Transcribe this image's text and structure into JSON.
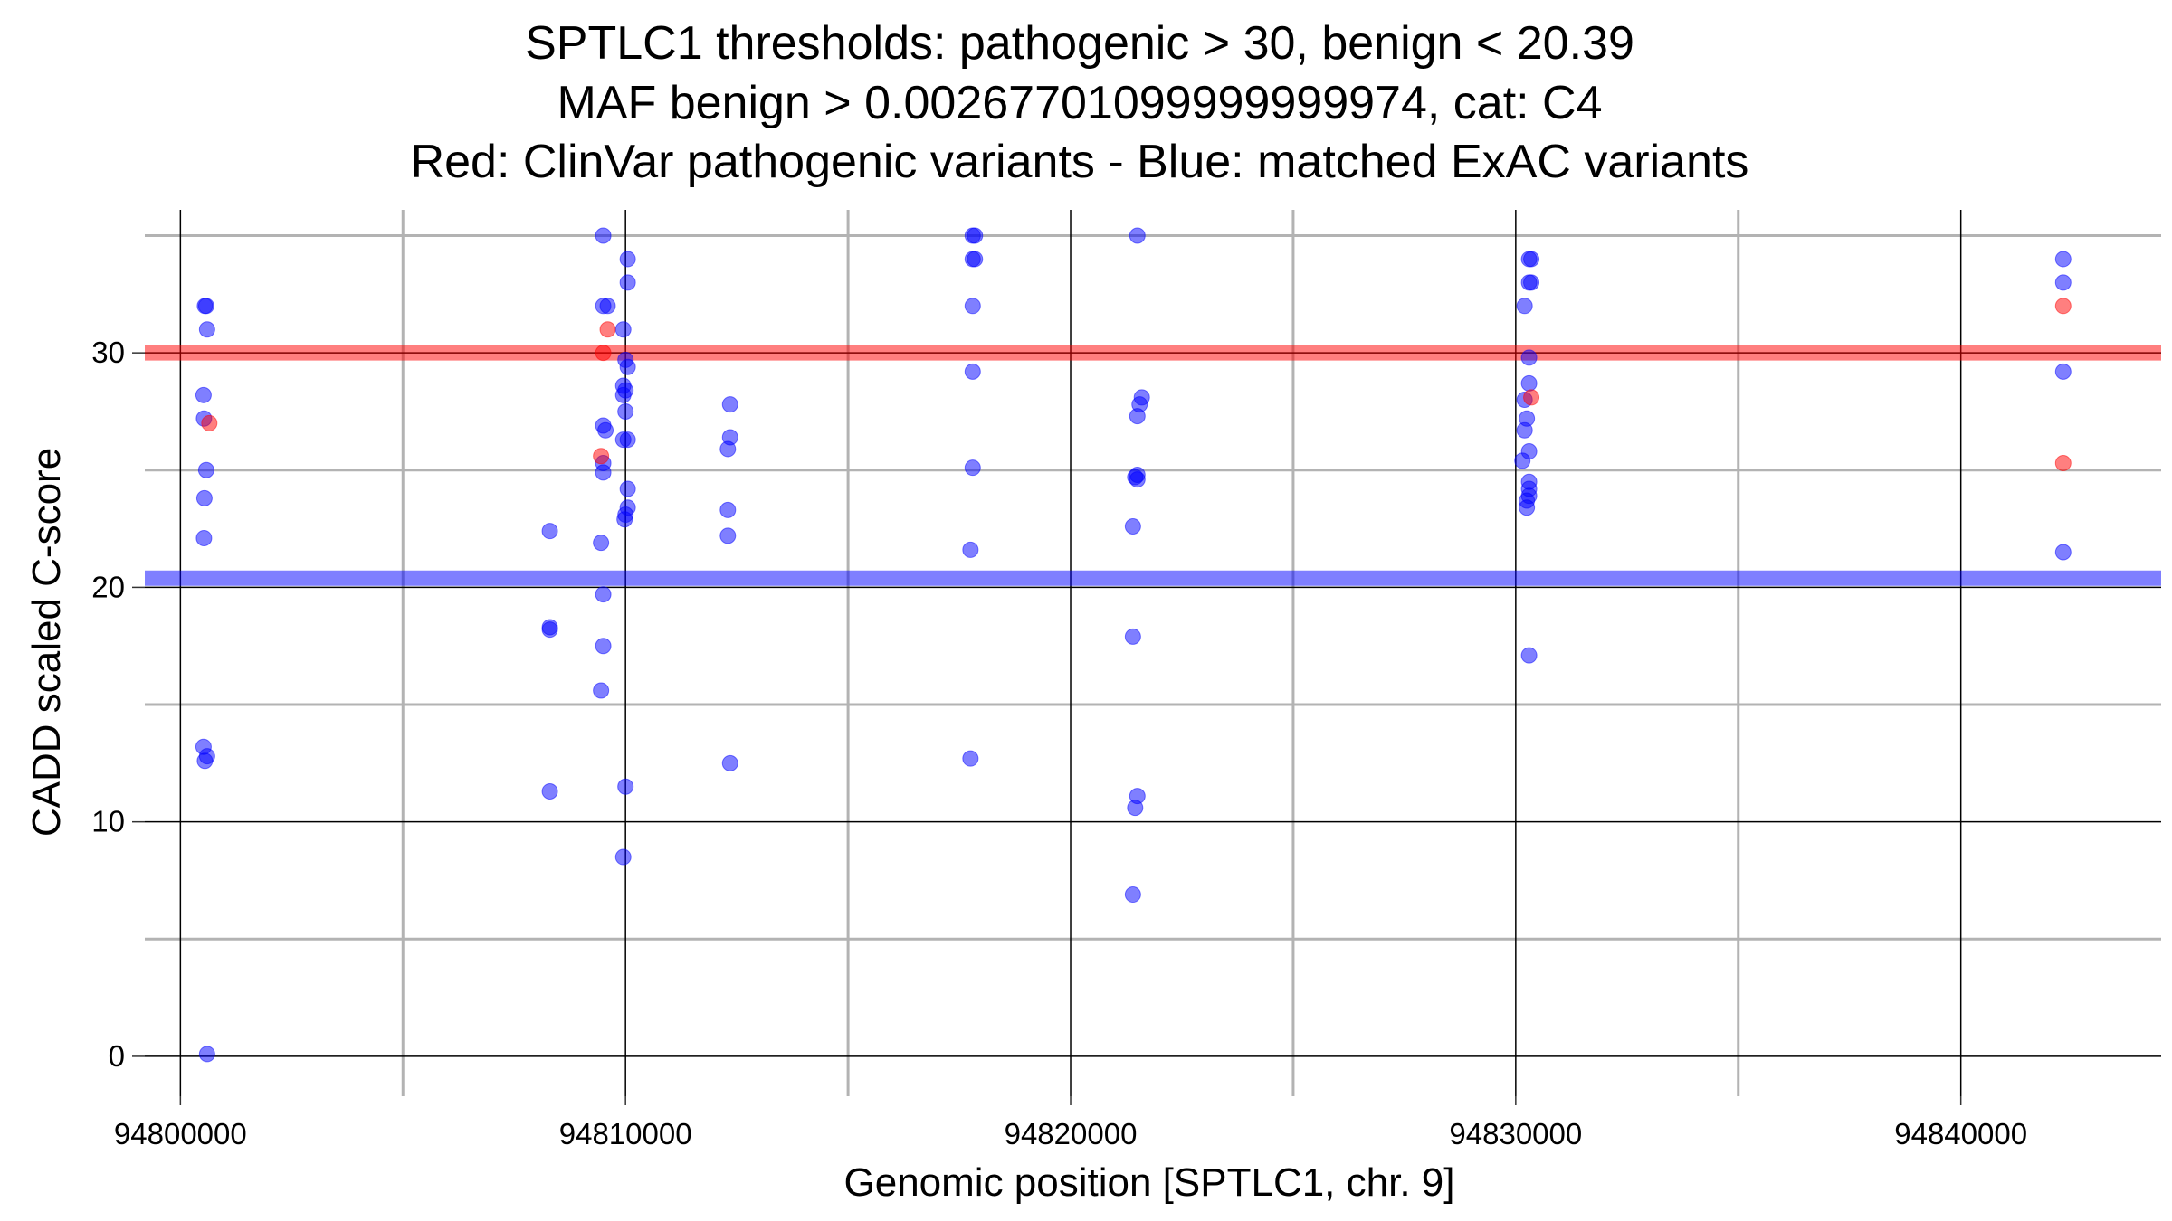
{
  "chart_data": {
    "type": "scatter",
    "title_lines": [
      "SPTLC1 thresholds: pathogenic > 30, benign < 20.39",
      "MAF benign > 0.00267701099999999974, cat: C4",
      "Red: ClinVar pathogenic variants - Blue: matched ExAC variants"
    ],
    "xlabel": "Genomic position [SPTLC1, chr. 9]",
    "ylabel": "CADD scaled C-score",
    "xlim": [
      94799200,
      94844500
    ],
    "ylim": [
      -1.7,
      36.1
    ],
    "x_ticks": [
      94800000,
      94810000,
      94820000,
      94830000,
      94840000
    ],
    "x_tick_labels": [
      "94800000",
      "94810000",
      "94820000",
      "94830000",
      "94840000"
    ],
    "x_minor_gridlines": [
      94805000,
      94815000,
      94825000,
      94835000
    ],
    "y_ticks": [
      0,
      10,
      20,
      30
    ],
    "y_tick_labels": [
      "0",
      "10",
      "20",
      "30"
    ],
    "y_minor_gridlines": [
      5,
      15,
      25,
      35
    ],
    "grid": true,
    "thresholds": [
      {
        "value": 30,
        "color": "#ff0000"
      },
      {
        "value": 20.39,
        "color": "#0000ff"
      }
    ],
    "colors": {
      "pathogenic": "#ff0000",
      "benign": "#0000ff"
    },
    "series": [
      {
        "color": "#0000ff",
        "points": [
          [
            94800550,
            32
          ],
          [
            94800580,
            32
          ],
          [
            94800600,
            31
          ],
          [
            94800520,
            28.2
          ],
          [
            94800530,
            27.2
          ],
          [
            94800580,
            25
          ],
          [
            94800540,
            23.8
          ],
          [
            94800530,
            22.1
          ],
          [
            94800520,
            13.2
          ],
          [
            94800600,
            12.8
          ],
          [
            94800550,
            12.6
          ],
          [
            94800600,
            0.1
          ],
          [
            94808300,
            22.4
          ],
          [
            94808300,
            18.3
          ],
          [
            94808300,
            18.2
          ],
          [
            94808300,
            11.3
          ],
          [
            94809500,
            35
          ],
          [
            94809500,
            32
          ],
          [
            94809600,
            32
          ],
          [
            94809500,
            26.9
          ],
          [
            94809550,
            26.7
          ],
          [
            94809500,
            25.3
          ],
          [
            94809500,
            24.9
          ],
          [
            94809450,
            21.9
          ],
          [
            94809500,
            19.7
          ],
          [
            94809500,
            17.5
          ],
          [
            94809450,
            15.6
          ],
          [
            94810050,
            34
          ],
          [
            94810050,
            33
          ],
          [
            94809950,
            31
          ],
          [
            94810000,
            29.7
          ],
          [
            94810050,
            29.4
          ],
          [
            94809950,
            28.6
          ],
          [
            94810000,
            28.4
          ],
          [
            94809950,
            28.2
          ],
          [
            94810000,
            27.5
          ],
          [
            94809950,
            26.3
          ],
          [
            94810050,
            26.3
          ],
          [
            94810050,
            24.2
          ],
          [
            94810050,
            23.4
          ],
          [
            94810000,
            23.1
          ],
          [
            94809980,
            22.9
          ],
          [
            94810000,
            11.5
          ],
          [
            94809950,
            8.5
          ],
          [
            94812350,
            27.8
          ],
          [
            94812350,
            26.4
          ],
          [
            94812300,
            25.9
          ],
          [
            94812300,
            23.3
          ],
          [
            94812300,
            22.2
          ],
          [
            94812350,
            12.5
          ],
          [
            94817800,
            35
          ],
          [
            94817850,
            35
          ],
          [
            94817800,
            34
          ],
          [
            94817850,
            34
          ],
          [
            94817800,
            32
          ],
          [
            94817800,
            29.2
          ],
          [
            94817800,
            25.1
          ],
          [
            94817750,
            21.6
          ],
          [
            94817750,
            12.7
          ],
          [
            94821500,
            35
          ],
          [
            94821600,
            28.1
          ],
          [
            94821550,
            27.8
          ],
          [
            94821500,
            27.3
          ],
          [
            94821500,
            24.8
          ],
          [
            94821450,
            24.7
          ],
          [
            94821500,
            24.6
          ],
          [
            94821400,
            22.6
          ],
          [
            94821400,
            17.9
          ],
          [
            94821500,
            11.1
          ],
          [
            94821450,
            10.6
          ],
          [
            94821400,
            6.9
          ],
          [
            94830300,
            34
          ],
          [
            94830350,
            34
          ],
          [
            94830300,
            33
          ],
          [
            94830350,
            33
          ],
          [
            94830200,
            32
          ],
          [
            94830300,
            29.8
          ],
          [
            94830300,
            28.7
          ],
          [
            94830200,
            28
          ],
          [
            94830250,
            27.2
          ],
          [
            94830200,
            26.7
          ],
          [
            94830300,
            25.8
          ],
          [
            94830150,
            25.4
          ],
          [
            94830300,
            24.5
          ],
          [
            94830300,
            24.2
          ],
          [
            94830300,
            23.9
          ],
          [
            94830250,
            23.7
          ],
          [
            94830250,
            23.4
          ],
          [
            94830300,
            17.1
          ],
          [
            94842300,
            34
          ],
          [
            94842300,
            33
          ],
          [
            94842300,
            29.2
          ],
          [
            94842300,
            21.5
          ]
        ]
      },
      {
        "color": "#ff0000",
        "points": [
          [
            94800650,
            27
          ],
          [
            94809600,
            31
          ],
          [
            94809500,
            30
          ],
          [
            94809450,
            25.6
          ],
          [
            94830350,
            28.1
          ],
          [
            94842300,
            32
          ],
          [
            94842300,
            25.3
          ]
        ]
      }
    ]
  }
}
